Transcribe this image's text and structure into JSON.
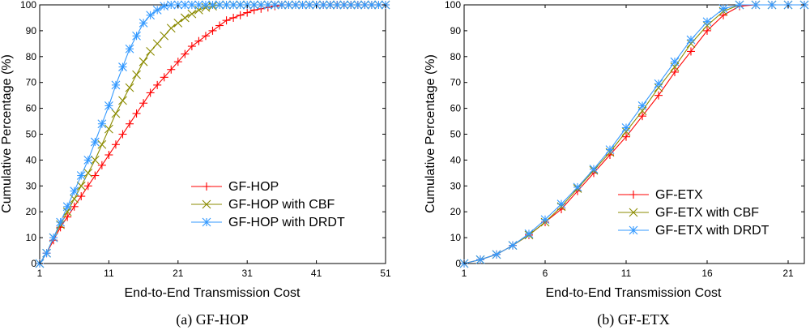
{
  "chart_data": [
    {
      "type": "line",
      "caption": "(a) GF-HOP",
      "xlabel": "End-to-End Transmission Cost",
      "ylabel": "Cumulative Percentage (%)",
      "xlim": [
        1,
        51
      ],
      "ylim": [
        0,
        100
      ],
      "xticks": [
        1,
        11,
        21,
        31,
        41,
        51
      ],
      "xtick_labels": [
        "1",
        "11",
        "21",
        "31",
        "41",
        "51"
      ],
      "yticks": [
        0,
        10,
        20,
        30,
        40,
        50,
        60,
        70,
        80,
        90,
        100
      ],
      "ytick_labels": [
        "0",
        "10",
        "20",
        "30",
        "40",
        "50",
        "60",
        "70",
        "80",
        "90",
        "100"
      ],
      "legend_position": "lower-right",
      "series": [
        {
          "name": "GF-HOP",
          "color": "#ff0000",
          "marker": "plus",
          "x": [
            1,
            2,
            3,
            4,
            5,
            6,
            7,
            8,
            9,
            10,
            11,
            12,
            13,
            14,
            15,
            16,
            17,
            18,
            19,
            20,
            21,
            22,
            23,
            24,
            25,
            26,
            27,
            28,
            29,
            30,
            31,
            32,
            33,
            34,
            35,
            36,
            37,
            38,
            39,
            40,
            41,
            42,
            43,
            44,
            45,
            46,
            47,
            48,
            49,
            50,
            51
          ],
          "y": [
            0,
            4,
            9,
            14,
            18,
            22,
            26,
            30,
            34,
            38,
            42,
            46,
            50,
            54,
            58,
            62,
            66,
            69,
            72,
            75,
            78,
            81,
            84,
            86,
            88,
            90,
            92,
            94,
            95,
            96,
            97,
            98,
            98.5,
            99,
            99.5,
            100,
            100,
            100,
            100,
            100,
            100,
            100,
            100,
            100,
            100,
            100,
            100,
            100,
            100,
            100,
            100
          ]
        },
        {
          "name": "GF-HOP with CBF",
          "color": "#8b8b00",
          "marker": "x",
          "x": [
            1,
            2,
            3,
            4,
            5,
            6,
            7,
            8,
            9,
            10,
            11,
            12,
            13,
            14,
            15,
            16,
            17,
            18,
            19,
            20,
            21,
            22,
            23,
            24,
            25,
            26,
            27,
            28,
            29,
            30,
            31,
            32,
            33,
            34,
            35,
            36,
            37,
            38,
            39,
            40,
            41,
            42,
            43,
            44,
            45,
            46,
            47,
            48,
            49,
            50,
            51
          ],
          "y": [
            0,
            4,
            10,
            15,
            20,
            25,
            30,
            35,
            40,
            46,
            52,
            58,
            63,
            68,
            73,
            78,
            82,
            85,
            88,
            91,
            93,
            95,
            96.5,
            98,
            99,
            99.5,
            100,
            100,
            100,
            100,
            100,
            100,
            100,
            100,
            100,
            100,
            100,
            100,
            100,
            100,
            100,
            100,
            100,
            100,
            100,
            100,
            100,
            100,
            100,
            100,
            100
          ]
        },
        {
          "name": "GF-HOP with DRDT",
          "color": "#3399ff",
          "marker": "asterisk",
          "x": [
            1,
            2,
            3,
            4,
            5,
            6,
            7,
            8,
            9,
            10,
            11,
            12,
            13,
            14,
            15,
            16,
            17,
            18,
            19,
            20,
            21,
            22,
            23,
            24,
            25,
            26,
            27,
            28,
            29,
            30,
            31,
            32,
            33,
            34,
            35,
            36,
            37,
            38,
            39,
            40,
            41,
            42,
            43,
            44,
            45,
            46,
            47,
            48,
            49,
            50,
            51
          ],
          "y": [
            0,
            4,
            10,
            16,
            22,
            28,
            34,
            40,
            47,
            54,
            61,
            69,
            76,
            83,
            88,
            93,
            96,
            98,
            99.5,
            100,
            100,
            100,
            100,
            100,
            100,
            100,
            100,
            100,
            100,
            100,
            100,
            100,
            100,
            100,
            100,
            100,
            100,
            100,
            100,
            100,
            100,
            100,
            100,
            100,
            100,
            100,
            100,
            100,
            100,
            100,
            100
          ]
        }
      ]
    },
    {
      "type": "line",
      "caption": "(b) GF-ETX",
      "xlabel": "End-to-End Transmission Cost",
      "ylabel": "Cumulative Percentage (%)",
      "xlim": [
        1,
        22
      ],
      "ylim": [
        0,
        100
      ],
      "xticks": [
        1,
        6,
        11,
        16,
        21
      ],
      "xtick_labels": [
        "1",
        "6",
        "11",
        "16",
        "21"
      ],
      "yticks": [
        0,
        10,
        20,
        30,
        40,
        50,
        60,
        70,
        80,
        90,
        100
      ],
      "ytick_labels": [
        "0",
        "10",
        "20",
        "30",
        "40",
        "50",
        "60",
        "70",
        "80",
        "90",
        "100"
      ],
      "legend_position": "lower-right",
      "series": [
        {
          "name": "GF-ETX",
          "color": "#ff0000",
          "marker": "plus",
          "x": [
            1,
            2,
            3,
            4,
            5,
            6,
            7,
            8,
            9,
            10,
            11,
            12,
            13,
            14,
            15,
            16,
            17,
            18,
            19,
            20,
            21,
            22
          ],
          "y": [
            0,
            1.5,
            3.5,
            7,
            11,
            16,
            21,
            28,
            35,
            42,
            49,
            57,
            65,
            74,
            82,
            90,
            96,
            99.5,
            100,
            100,
            100,
            100
          ]
        },
        {
          "name": "GF-ETX with CBF",
          "color": "#8b8b00",
          "marker": "x",
          "x": [
            1,
            2,
            3,
            4,
            5,
            6,
            7,
            8,
            9,
            10,
            11,
            12,
            13,
            14,
            15,
            16,
            17,
            18,
            19,
            20,
            21,
            22
          ],
          "y": [
            0,
            1.5,
            3.5,
            7,
            11,
            16,
            22,
            29,
            36,
            43,
            51,
            59,
            68,
            76,
            85,
            92,
            97.5,
            100,
            100,
            100,
            100,
            100
          ]
        },
        {
          "name": "GF-ETX with DRDT",
          "color": "#3399ff",
          "marker": "asterisk",
          "x": [
            1,
            2,
            3,
            4,
            5,
            6,
            7,
            8,
            9,
            10,
            11,
            12,
            13,
            14,
            15,
            16,
            17,
            18,
            19,
            20,
            21,
            22
          ],
          "y": [
            0,
            1.5,
            3.5,
            7,
            11.5,
            17,
            23,
            29.5,
            36.5,
            44,
            52.5,
            61,
            69.5,
            78,
            86.5,
            93.5,
            98.5,
            100,
            100,
            100,
            100,
            100
          ]
        }
      ]
    }
  ]
}
